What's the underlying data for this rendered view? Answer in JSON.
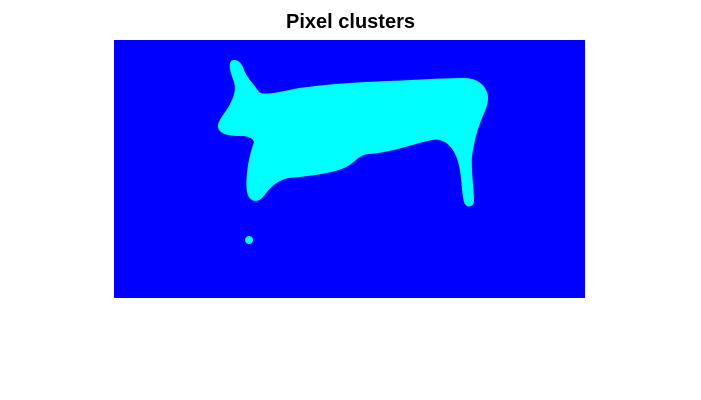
{
  "figure": {
    "title": "Pixel clusters"
  },
  "image": {
    "background_color": "#0000ff",
    "cluster_color": "#00ffff",
    "clusters": [
      "background-cluster",
      "foreground-cluster"
    ]
  }
}
